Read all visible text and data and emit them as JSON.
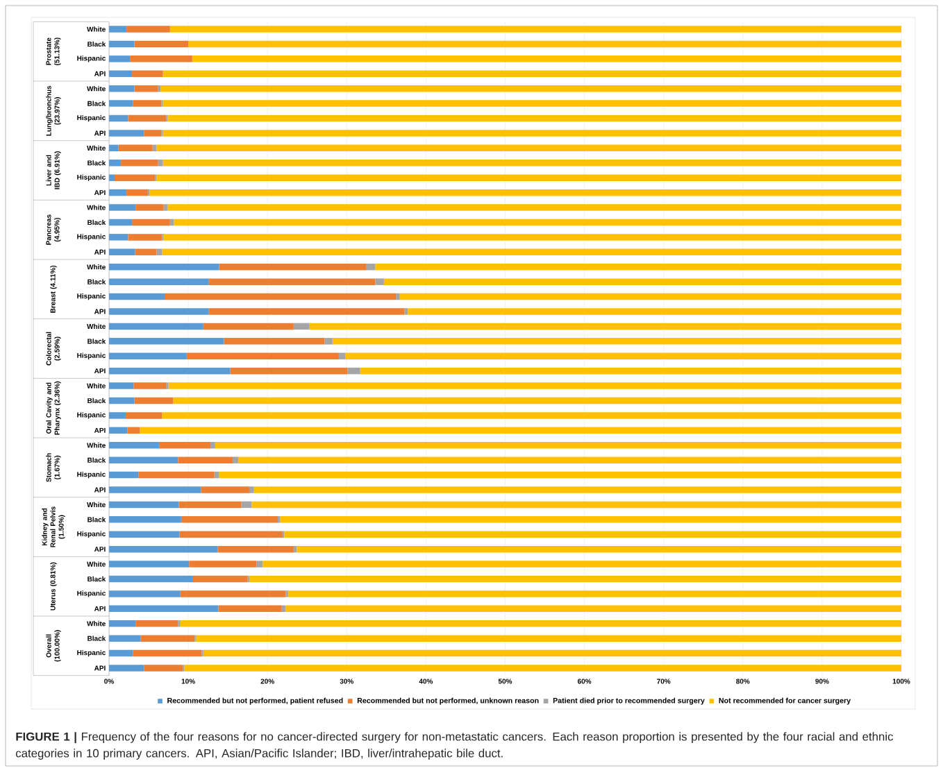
{
  "chart_data": {
    "type": "bar",
    "orientation": "horizontal",
    "stacked": true,
    "categories": [
      "White",
      "Black",
      "Hispanic",
      "API",
      "White",
      "Black",
      "Hispanic",
      "API",
      "White",
      "Black",
      "Hispanic",
      "API",
      "White",
      "Black",
      "Hispanic",
      "API",
      "White",
      "Black",
      "Hispanic",
      "API",
      "White",
      "Black",
      "Hispanic",
      "API",
      "White",
      "Black",
      "Hispanic",
      "API",
      "White",
      "Black",
      "Hispanic",
      "API",
      "White",
      "Black",
      "Hispanic",
      "API",
      "White",
      "Black",
      "Hispanic",
      "API",
      "White",
      "Black",
      "Hispanic",
      "API"
    ],
    "series": [
      {
        "name": "Recommended but not performed, patient refused",
        "color": "#5b9bd5",
        "values": [
          2.2,
          3.2,
          2.7,
          2.9,
          3.2,
          3.0,
          2.4,
          4.4,
          1.2,
          1.5,
          0.7,
          2.2,
          3.4,
          2.9,
          2.4,
          3.3,
          13.9,
          12.6,
          7.1,
          12.6,
          11.9,
          14.5,
          9.8,
          15.3,
          3.1,
          3.2,
          2.1,
          2.3,
          6.3,
          8.7,
          3.7,
          11.6,
          8.8,
          9.1,
          8.9,
          13.7,
          10.1,
          10.6,
          9.0,
          13.8,
          3.4,
          4.0,
          3.0,
          4.4
        ]
      },
      {
        "name": "Recommended but not performed, unknown reason",
        "color": "#ed7d31",
        "values": [
          5.5,
          6.8,
          7.8,
          3.9,
          3.0,
          3.6,
          4.8,
          2.2,
          4.3,
          4.7,
          5.1,
          2.7,
          3.5,
          4.8,
          4.3,
          2.7,
          18.6,
          21.0,
          29.1,
          24.7,
          11.4,
          12.7,
          19.2,
          14.8,
          4.1,
          4.9,
          4.6,
          1.6,
          6.5,
          6.9,
          9.6,
          6.1,
          7.9,
          12.2,
          13.0,
          9.6,
          8.5,
          6.9,
          13.3,
          8.0,
          5.3,
          6.8,
          8.7,
          4.9
        ]
      },
      {
        "name": "Patient died prior to recommended surgery",
        "color": "#a5a5a5",
        "values": [
          0,
          0,
          0,
          0,
          0.3,
          0.2,
          0.2,
          0.2,
          0.5,
          0.6,
          0.2,
          0.2,
          0.5,
          0.5,
          0.2,
          0.7,
          1.1,
          1.1,
          0.5,
          0.4,
          2.0,
          1.0,
          0.8,
          1.6,
          0.3,
          0,
          0,
          0,
          0.6,
          0.7,
          0.6,
          0.6,
          1.3,
          0.3,
          0.2,
          0.4,
          0.8,
          0.2,
          0.3,
          0.5,
          0.3,
          0.2,
          0.2,
          0.2
        ]
      },
      {
        "name": "Not recommended for cancer surgery",
        "color": "#ffc000",
        "values": [
          92.3,
          90.0,
          89.5,
          93.2,
          93.5,
          93.2,
          92.6,
          93.2,
          94.0,
          93.2,
          94.0,
          94.9,
          92.6,
          91.8,
          93.1,
          93.3,
          66.4,
          65.3,
          63.3,
          62.3,
          74.7,
          71.8,
          70.2,
          68.3,
          92.5,
          91.9,
          93.3,
          96.1,
          86.6,
          83.7,
          86.1,
          81.7,
          82.0,
          78.4,
          77.9,
          76.3,
          80.6,
          82.3,
          77.4,
          77.7,
          91.0,
          89.0,
          88.1,
          90.5
        ]
      }
    ],
    "xlim": [
      0,
      100
    ],
    "xticks": [
      {
        "value": 0,
        "label": "0%"
      },
      {
        "value": 10,
        "label": "10%"
      },
      {
        "value": 20,
        "label": "20%"
      },
      {
        "value": 30,
        "label": "30%"
      },
      {
        "value": 40,
        "label": "40%"
      },
      {
        "value": 50,
        "label": "50%"
      },
      {
        "value": 60,
        "label": "60%"
      },
      {
        "value": 70,
        "label": "70%"
      },
      {
        "value": 80,
        "label": "80%"
      },
      {
        "value": 90,
        "label": "90%"
      },
      {
        "value": 100,
        "label": "100%"
      }
    ],
    "grid": "x",
    "legend": "bottom",
    "annotations": [
      "Prostate (51.13%)",
      "Lung/bronchus (23.97%)",
      "Liver and IBD (6.91%)",
      "Pancreas (4.95%)",
      "Breast (4.11%)",
      "Colorectal (2.59%)",
      "Oral Cavity and Pharynx (2.36%)",
      "Stomach (1.67%)",
      "Kidney and Renal Pelvis (1.50%)",
      "Uterus (0.81%)",
      "Overall (100.00%)",
      "**FIGURE 1 |** Frequency of the four reasons for no cancer-directed surgery for non-metastatic cancers. Each reason proportion is presented by the four racial and ethnic categories in 10 primary cancers. API, Asian/Pacific Islander; IBD, liver/intrahepatic bile duct."
    ]
  }
}
